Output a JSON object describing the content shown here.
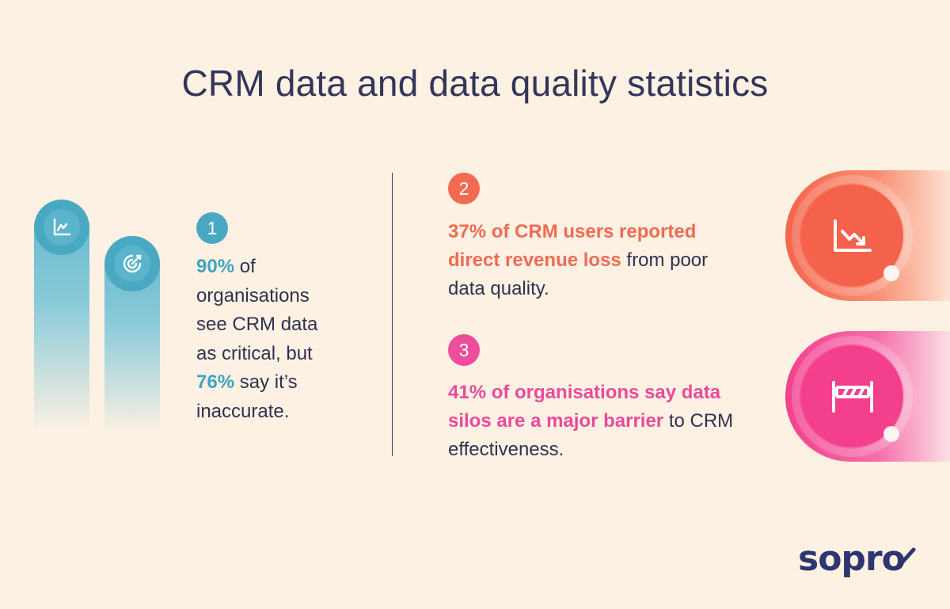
{
  "title": "CRM data and data quality statistics",
  "stats": [
    {
      "number": "1",
      "parts": [
        {
          "text": "90%",
          "highlight": true
        },
        {
          "text": " of organisations see CRM data as critical, but ",
          "highlight": false
        },
        {
          "text": "76%",
          "highlight": true
        },
        {
          "text": " say it’s inaccurate.",
          "highlight": false
        }
      ]
    },
    {
      "number": "2",
      "highlight_text": "37% of CRM users reported direct revenue loss",
      "rest_text": " from poor data quality."
    },
    {
      "number": "3",
      "highlight_text": "41% of organisations say data silos are a major barrier",
      "rest_text": " to CRM effectiveness."
    }
  ],
  "icons": [
    "chart-icon",
    "target-icon",
    "declining-chart-icon",
    "barrier-icon"
  ],
  "colors": {
    "background": "#fdf1e3",
    "teal": "#4aa9c2",
    "coral": "#f26a52",
    "pink": "#ee4d9c",
    "navy": "#2f3150"
  },
  "logo": "sopro"
}
